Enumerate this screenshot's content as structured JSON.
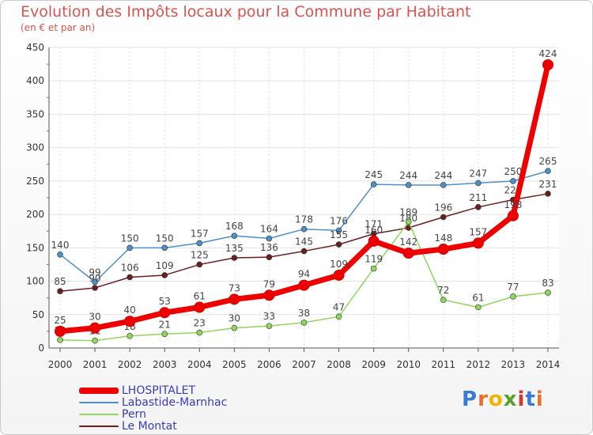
{
  "header": {
    "title": "Evolution des Impôts locaux pour la Commune par Habitant",
    "subtitle": "(en € et par an)"
  },
  "logo": {
    "text": [
      "P",
      "r",
      "o",
      "x",
      "i",
      "t",
      "i"
    ],
    "colors": [
      "#3a7bd5",
      "#e8702a",
      "#f0b400",
      "#5aa02c",
      "#d9342b",
      "#3a7bd5",
      "#e8702a"
    ]
  },
  "chart_data": {
    "type": "line",
    "title": "Evolution des Impôts locaux pour la Commune par Habitant",
    "subtitle": "(en € et par an)",
    "x": [
      "2000",
      "2001",
      "2002",
      "2003",
      "2004",
      "2005",
      "2006",
      "2007",
      "2008",
      "2009",
      "2010",
      "2011",
      "2012",
      "2013",
      "2014"
    ],
    "ylim": [
      0,
      450
    ],
    "yticks": [
      0,
      50,
      100,
      150,
      200,
      250,
      300,
      350,
      400,
      450
    ],
    "grid": true,
    "legend_position": "bottom-left",
    "series": [
      {
        "name": "LHOSPITALET",
        "color": "#ee0000",
        "values": [
          25,
          30,
          40,
          53,
          61,
          73,
          79,
          94,
          109,
          160,
          142,
          148,
          157,
          198,
          424
        ]
      },
      {
        "name": "Labastide-Marnhac",
        "color": "#4f8fc9",
        "values": [
          140,
          99,
          150,
          150,
          157,
          168,
          164,
          178,
          176,
          245,
          244,
          244,
          247,
          250,
          265
        ]
      },
      {
        "name": "Pern",
        "color": "#8ed65c",
        "values": [
          12,
          11,
          18,
          21,
          23,
          30,
          33,
          38,
          47,
          119,
          189,
          72,
          61,
          77,
          83
        ]
      },
      {
        "name": "Le Montat",
        "color": "#6b1e1e",
        "values": [
          85,
          90,
          106,
          109,
          125,
          135,
          136,
          145,
          155,
          171,
          180,
          196,
          211,
          222,
          231
        ]
      }
    ]
  }
}
